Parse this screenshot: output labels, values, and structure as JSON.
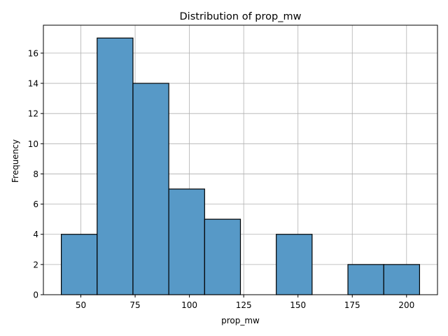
{
  "chart_data": {
    "type": "bar",
    "title": "Distribution of prop_mw",
    "xlabel": "prop_mw",
    "ylabel": "Frequency",
    "bins": [
      {
        "x0": 41.0,
        "x1": 57.5,
        "count": 4
      },
      {
        "x0": 57.5,
        "x1": 74.0,
        "count": 17
      },
      {
        "x0": 74.0,
        "x1": 90.5,
        "count": 14
      },
      {
        "x0": 90.5,
        "x1": 107.0,
        "count": 7
      },
      {
        "x0": 107.0,
        "x1": 123.5,
        "count": 5
      },
      {
        "x0": 123.5,
        "x1": 140.0,
        "count": 0
      },
      {
        "x0": 140.0,
        "x1": 156.5,
        "count": 4
      },
      {
        "x0": 156.5,
        "x1": 173.0,
        "count": 0
      },
      {
        "x0": 173.0,
        "x1": 189.5,
        "count": 2
      },
      {
        "x0": 189.5,
        "x1": 206.0,
        "count": 2
      }
    ],
    "xlim": [
      32.75,
      214.25
    ],
    "ylim": [
      0,
      17.85
    ],
    "xticks": [
      50,
      75,
      100,
      125,
      150,
      175,
      200
    ],
    "yticks": [
      0,
      2,
      4,
      6,
      8,
      10,
      12,
      14,
      16
    ],
    "grid": true,
    "bar_color": "#5799c7",
    "edge_color": "#000000"
  }
}
